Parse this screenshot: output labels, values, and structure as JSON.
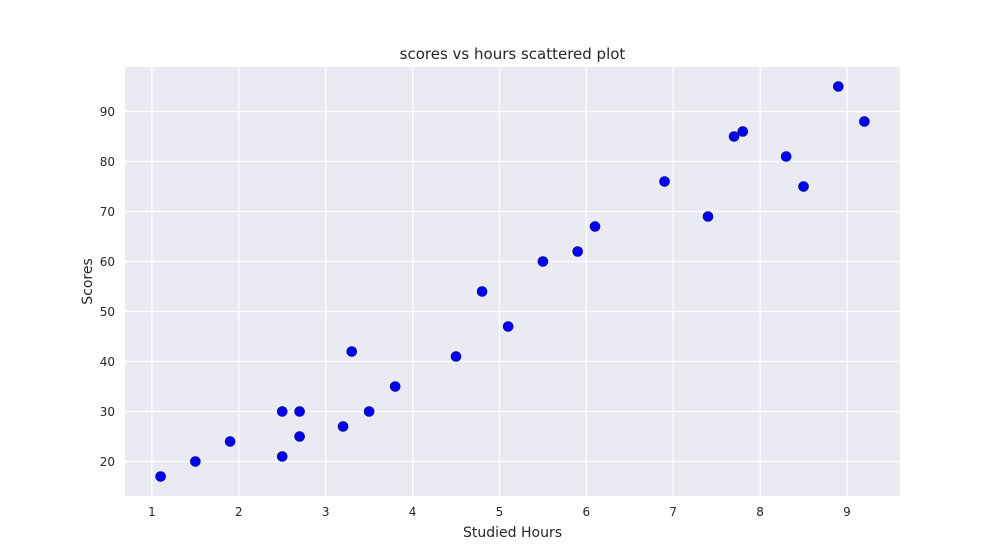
{
  "chart_data": {
    "type": "scatter",
    "title": "scores vs hours scattered plot",
    "xlabel": "Studied Hours",
    "ylabel": "Scores",
    "xlim": [
      0.69,
      9.61
    ],
    "ylim": [
      13.1,
      98.9
    ],
    "xticks": [
      1,
      2,
      3,
      4,
      5,
      6,
      7,
      8,
      9
    ],
    "yticks": [
      20,
      30,
      40,
      50,
      60,
      70,
      80,
      90
    ],
    "grid": true,
    "colors": {
      "background": "#EAEAF2",
      "grid": "#FFFFFF",
      "marker": "#0000EE",
      "text": "#262626"
    },
    "points": [
      {
        "x": 2.5,
        "y": 21
      },
      {
        "x": 5.1,
        "y": 47
      },
      {
        "x": 3.2,
        "y": 27
      },
      {
        "x": 8.5,
        "y": 75
      },
      {
        "x": 3.5,
        "y": 30
      },
      {
        "x": 1.5,
        "y": 20
      },
      {
        "x": 9.2,
        "y": 88
      },
      {
        "x": 5.5,
        "y": 60
      },
      {
        "x": 8.3,
        "y": 81
      },
      {
        "x": 2.7,
        "y": 25
      },
      {
        "x": 7.7,
        "y": 85
      },
      {
        "x": 5.9,
        "y": 62
      },
      {
        "x": 4.5,
        "y": 41
      },
      {
        "x": 3.3,
        "y": 42
      },
      {
        "x": 1.1,
        "y": 17
      },
      {
        "x": 8.9,
        "y": 95
      },
      {
        "x": 2.5,
        "y": 30
      },
      {
        "x": 1.9,
        "y": 24
      },
      {
        "x": 6.1,
        "y": 67
      },
      {
        "x": 7.4,
        "y": 69
      },
      {
        "x": 2.7,
        "y": 30
      },
      {
        "x": 4.8,
        "y": 54
      },
      {
        "x": 3.8,
        "y": 35
      },
      {
        "x": 6.9,
        "y": 76
      },
      {
        "x": 7.8,
        "y": 86
      }
    ]
  }
}
